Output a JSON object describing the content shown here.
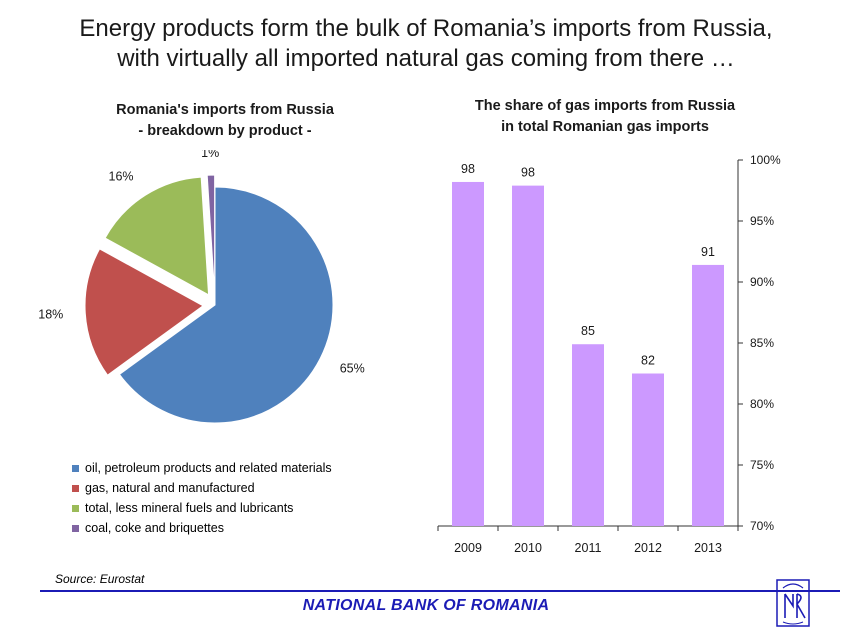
{
  "headline": {
    "line1": "Energy products form the bulk of Romania’s imports from Russia,",
    "line2": "with virtually all imported natural gas coming from there …"
  },
  "chart_data": [
    {
      "type": "pie",
      "title_line1": "Romania's imports from Russia",
      "title_line2": "- breakdown by product -",
      "slices": [
        {
          "label": "oil, petroleum products and related materials",
          "value": 65,
          "value_label": "65%",
          "color": "#4f81bd",
          "exploded": false
        },
        {
          "label": "gas, natural and manufactured",
          "value": 18,
          "value_label": "18%",
          "color": "#c0504d",
          "exploded": true
        },
        {
          "label": "total, less mineral fuels and lubricants",
          "value": 16,
          "value_label": "16%",
          "color": "#9bbb59",
          "exploded": true
        },
        {
          "label": "coal, coke and briquettes",
          "value": 1,
          "value_label": "1%",
          "color": "#8064a2",
          "exploded": true
        }
      ],
      "legend_position": "bottom"
    },
    {
      "type": "bar",
      "title_line1": "The share of gas imports from Russia",
      "title_line2": "in total Romanian gas imports",
      "categories": [
        "2009",
        "2010",
        "2011",
        "2012",
        "2013"
      ],
      "values": [
        98.2,
        97.9,
        84.9,
        82.5,
        91.4
      ],
      "value_labels": [
        "98",
        "98",
        "85",
        "82",
        "91"
      ],
      "bar_color": "#cc99ff",
      "ylim": [
        70,
        100
      ],
      "yticks": [
        70,
        75,
        80,
        85,
        90,
        95,
        100
      ],
      "ytick_labels": [
        "70%",
        "75%",
        "80%",
        "85%",
        "90%",
        "95%",
        "100%"
      ],
      "yaxis_side": "right",
      "grid": false
    }
  ],
  "source": "Source: Eurostat",
  "footer": "NATIONAL BANK OF ROMANIA",
  "logo_icon": "bnr-monogram-icon"
}
